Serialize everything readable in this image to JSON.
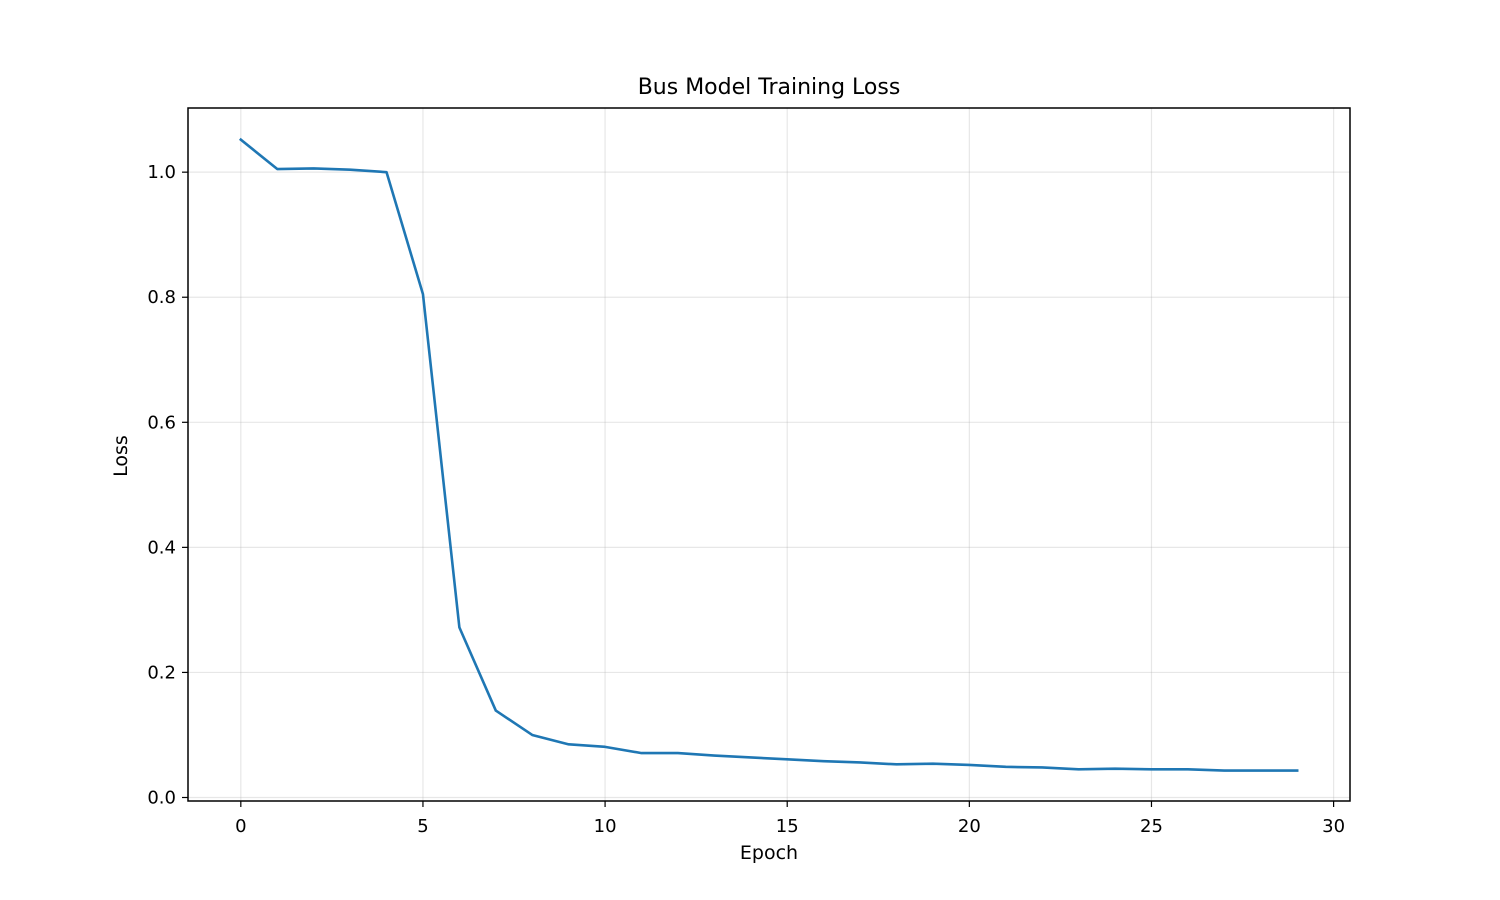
{
  "chart_data": {
    "type": "line",
    "title": "Bus Model Training Loss",
    "xlabel": "Epoch",
    "ylabel": "Loss",
    "xlim": [
      -1.45,
      30.45
    ],
    "ylim": [
      -0.0056,
      1.1026
    ],
    "xticks": [
      0,
      5,
      10,
      15,
      20,
      25,
      30
    ],
    "xtick_labels": [
      "0",
      "5",
      "10",
      "15",
      "20",
      "25",
      "30"
    ],
    "yticks": [
      0.0,
      0.2,
      0.4,
      0.6,
      0.8,
      1.0
    ],
    "ytick_labels": [
      "0.0",
      "0.2",
      "0.4",
      "0.6",
      "0.8",
      "1.0"
    ],
    "grid": true,
    "legend": "none",
    "series": [
      {
        "color": "#1f77b4",
        "x": [
          0,
          1,
          2,
          3,
          4,
          5,
          6,
          7,
          8,
          9,
          10,
          11,
          12,
          13,
          14,
          15,
          16,
          17,
          18,
          19,
          20,
          21,
          22,
          23,
          24,
          25,
          26,
          27,
          28,
          29
        ],
        "y": [
          1.052,
          1.005,
          1.006,
          1.004,
          1.0,
          0.805,
          0.272,
          0.139,
          0.1,
          0.085,
          0.081,
          0.071,
          0.071,
          0.067,
          0.064,
          0.061,
          0.058,
          0.056,
          0.053,
          0.054,
          0.052,
          0.049,
          0.048,
          0.045,
          0.046,
          0.045,
          0.045,
          0.043,
          0.043,
          0.043
        ]
      }
    ]
  }
}
